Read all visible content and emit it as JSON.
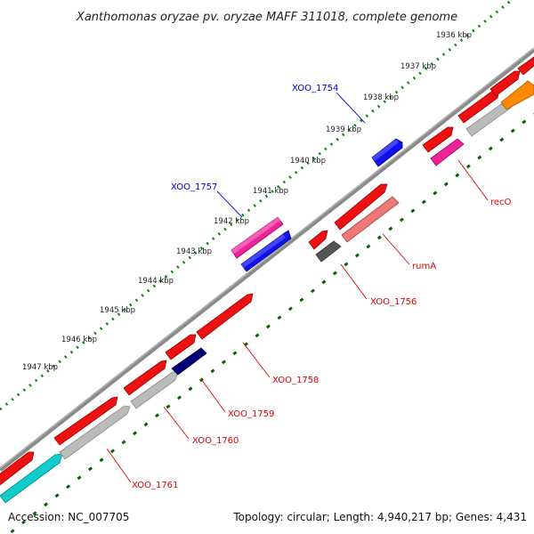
{
  "title": "Xanthomonas oryzae pv. oryzae MAFF 311018, complete genome",
  "footer": {
    "accession": "Accession: NC_007705",
    "summary": "Topology: circular; Length: 4,940,217 bp; Genes: 4,431"
  },
  "ticks": [
    "1936 kbp",
    "1937 kbp",
    "1938 kbp",
    "1939 kbp",
    "1940 kbp",
    "1941 kbp",
    "1942 kbp",
    "1943 kbp",
    "1944 kbp",
    "1945 kbp",
    "1946 kbp",
    "1947 kbp"
  ],
  "gene_labels": [
    {
      "text": "XOO_1754",
      "strand": "plus",
      "color": "#0000dd"
    },
    {
      "text": "XOO_1757",
      "strand": "plus",
      "color": "#0000dd"
    },
    {
      "text": "recO",
      "strand": "minus",
      "color": "#dd0000"
    },
    {
      "text": "rumA",
      "strand": "minus",
      "color": "#dd0000"
    },
    {
      "text": "XOO_1756",
      "strand": "minus",
      "color": "#dd0000"
    },
    {
      "text": "XOO_1758",
      "strand": "minus",
      "color": "#dd0000"
    },
    {
      "text": "XOO_1759",
      "strand": "minus",
      "color": "#dd0000"
    },
    {
      "text": "XOO_1760",
      "strand": "minus",
      "color": "#dd0000"
    },
    {
      "text": "XOO_1761",
      "strand": "minus",
      "color": "#dd0000"
    }
  ],
  "colors": {
    "backbone": "#8a8a8a",
    "tick_outer": "#008800",
    "tick_inner": "#006600",
    "gene_red": "#ee1111",
    "gene_blue": "#1111ee",
    "gene_navy": "#000077",
    "gene_pink": "#ee2299",
    "gene_salmon": "#ee7777",
    "gene_gray": "#bbbbbb",
    "gene_darkgray": "#555555",
    "gene_cyan": "#11cccc",
    "gene_orange": "#ff8800"
  }
}
